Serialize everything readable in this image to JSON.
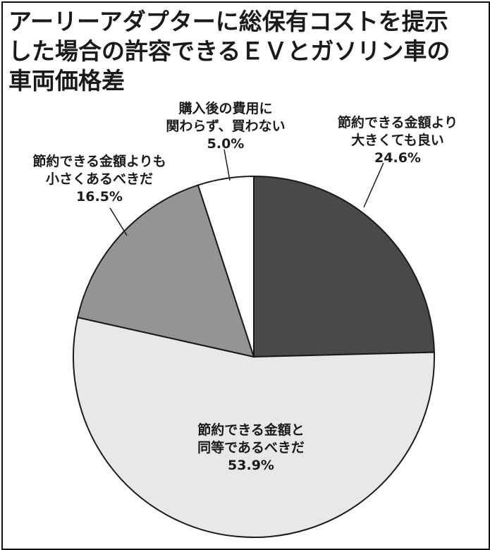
{
  "chart_data": {
    "type": "pie",
    "title_lines": [
      "アーリーアダプターに総保有コストを提示",
      "した場合の許容できるＥＶとガソリン車の",
      "車両価格差"
    ],
    "slices": [
      {
        "label_lines": [
          "節約できる金額より",
          "大きくても良い"
        ],
        "value": 24.6,
        "value_text": "24.6%",
        "color": "#4a4849"
      },
      {
        "label_lines": [
          "節約できる金額と",
          "同等であるべきだ"
        ],
        "value": 53.9,
        "value_text": "53.9%",
        "color": "#e8e8ea"
      },
      {
        "label_lines": [
          "節約できる金額よりも",
          "小さくあるべきだ"
        ],
        "value": 16.5,
        "value_text": "16.5%",
        "color": "#959495"
      },
      {
        "label_lines": [
          "購入後の費用に",
          "関わらず、買わない"
        ],
        "value": 5.0,
        "value_text": "5.0%",
        "color": "#ffffff"
      }
    ],
    "start": "12 o'clock",
    "direction": "clockwise",
    "outline_color": "#1a1a1a"
  }
}
